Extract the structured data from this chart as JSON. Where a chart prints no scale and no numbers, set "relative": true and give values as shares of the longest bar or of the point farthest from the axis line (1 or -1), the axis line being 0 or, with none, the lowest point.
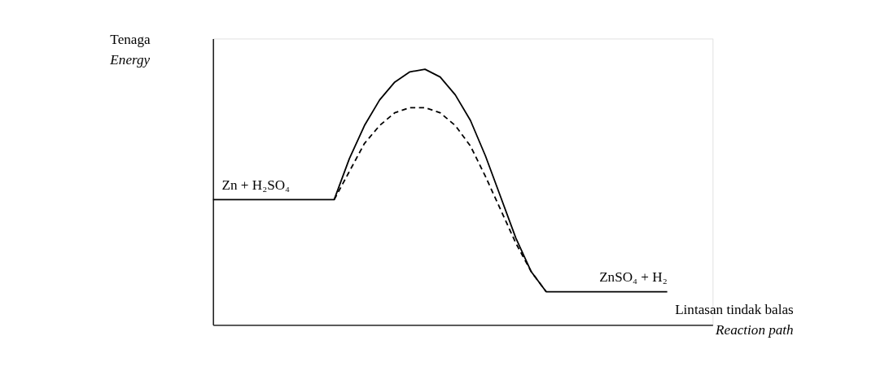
{
  "chart_data": {
    "type": "line",
    "relative": true,
    "ylabel": "Tenaga\nEnergy",
    "xlabel": "Lintasan tindak balas\nReaction path",
    "categories": [
      null,
      null,
      null,
      null,
      null,
      null,
      null,
      null,
      null,
      null,
      null,
      null,
      null,
      null,
      null,
      null,
      null,
      null,
      null,
      null,
      null,
      null,
      null,
      null,
      null,
      null,
      null,
      null,
      null,
      null,
      null
    ],
    "series": [
      {
        "color": "#000000",
        "line_style": "solid",
        "values": [
          0.49,
          0.49,
          0.49,
          0.49,
          0.49,
          0.49,
          0.49,
          0.49,
          0.49,
          0.65,
          0.78,
          0.88,
          0.95,
          0.99,
          1.0,
          0.97,
          0.9,
          0.8,
          0.66,
          0.5,
          0.34,
          0.21,
          0.13,
          0.13,
          0.13,
          0.13,
          0.13,
          0.13,
          0.13,
          0.13,
          0.13
        ]
      },
      {
        "color": "#000000",
        "line_style": "dashed",
        "values": [
          null,
          null,
          null,
          null,
          null,
          null,
          null,
          null,
          0.49,
          0.6,
          0.71,
          0.78,
          0.83,
          0.85,
          0.85,
          0.83,
          0.78,
          0.7,
          0.58,
          0.45,
          0.32,
          0.21,
          0.13,
          null,
          null,
          null,
          null,
          null,
          null,
          null,
          null
        ]
      }
    ],
    "annotations": [
      "Zn + H₂SO₄",
      "ZnSO₄ + H₂"
    ],
    "marker": "none",
    "grid": false
  }
}
